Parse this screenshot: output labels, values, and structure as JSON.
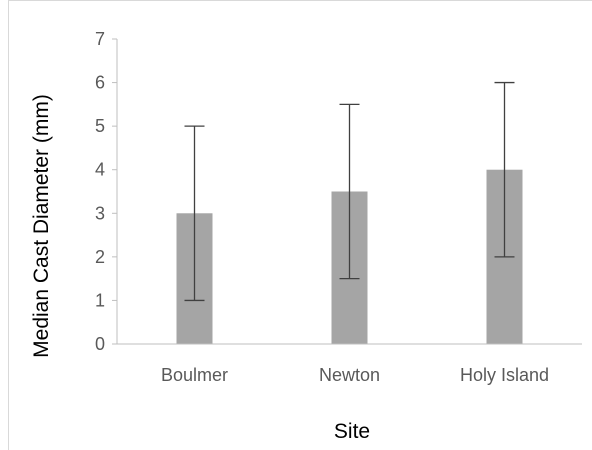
{
  "chart_data": {
    "type": "bar",
    "title": "",
    "xlabel": "Site",
    "ylabel": "Median Cast Diameter (mm)",
    "categories": [
      "Boulmer",
      "Newton",
      "Holy Island"
    ],
    "values": [
      3,
      3.5,
      4
    ],
    "error_bars": [
      {
        "low": 1,
        "high": 5
      },
      {
        "low": 1.5,
        "high": 5.5
      },
      {
        "low": 2,
        "high": 6
      }
    ],
    "ylim": [
      0,
      7
    ],
    "yticks": [
      0,
      1,
      2,
      3,
      4,
      5,
      6,
      7
    ],
    "grid": false,
    "legend": "none",
    "colors": {
      "bar": "#a5a5a5",
      "error_bar": "#404040",
      "axis": "#bfbfbf",
      "tick_text": "#595959",
      "title_text": "#000000"
    }
  }
}
